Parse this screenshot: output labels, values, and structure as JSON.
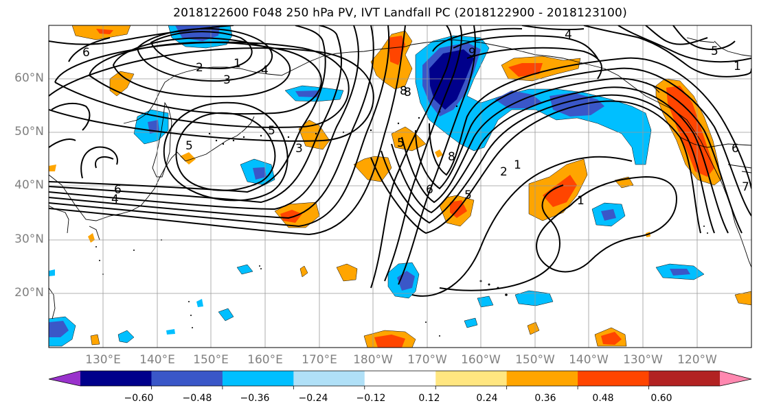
{
  "title": "2018122600 F048 250 hPa PV, IVT Landfall PC (2018122900 - 2018123100)",
  "longitude_labels": [
    "130°E",
    "140°E",
    "150°E",
    "160°E",
    "170°E",
    "180°W",
    "170°W",
    "160°W",
    "150°W",
    "140°W",
    "130°W",
    "120°W"
  ],
  "latitude_labels": [
    "60°N",
    "50°N",
    "40°N",
    "30°N",
    "20°N"
  ],
  "colorbar": {
    "tick_labels": [
      "−0.60",
      "−0.48",
      "−0.36",
      "−0.24",
      "−0.12",
      "0.12",
      "0.24",
      "0.36",
      "0.48",
      "0.60"
    ],
    "colors": [
      "#9932cc",
      "#00008b",
      "#3a57c8",
      "#00bfff",
      "#b0e0f7",
      "#ffffff",
      "#ffe680",
      "#ffa500",
      "#ff4500",
      "#b22222",
      "#ff88b0"
    ]
  },
  "contour_labels": [
    "6",
    "2",
    "1",
    "3",
    "4",
    "5",
    "5",
    "3",
    "6",
    "4",
    "8",
    "6",
    "5",
    "8",
    "9",
    "5",
    "2",
    "1",
    "1",
    "4",
    "5",
    "6",
    "7",
    "8",
    "1"
  ],
  "colors": {
    "contour": "#000000",
    "grid": "#999999",
    "coast": "#000000"
  }
}
